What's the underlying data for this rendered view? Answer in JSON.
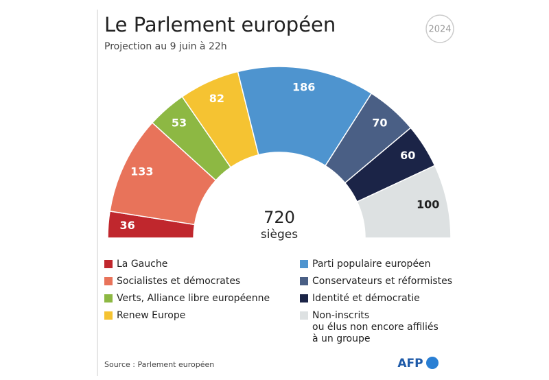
{
  "chart_data": {
    "type": "parliament",
    "title": "Le Parlement européen",
    "subtitle": "Projection au 9 juin à 22h",
    "badge": "2024",
    "categories": [
      "La Gauche",
      "Socialistes et démocrates",
      "Verts, Alliance libre européenne",
      "Renew Europe",
      "Parti populaire européen",
      "Conservateurs et réformistes",
      "Identité et démocratie",
      "Non-inscrits\nou élus non encore affiliés\nà un groupe"
    ],
    "values": [
      36,
      133,
      53,
      82,
      186,
      70,
      60,
      100
    ],
    "colors": [
      "#c0272d",
      "#e8735a",
      "#8db843",
      "#f5c332",
      "#4e94cf",
      "#4a5f85",
      "#1b2447",
      "#dde1e2"
    ],
    "label_colors": [
      "#ffffff",
      "#ffffff",
      "#ffffff",
      "#ffffff",
      "#ffffff",
      "#ffffff",
      "#ffffff",
      "#222222"
    ],
    "total": 720,
    "total_label": "sièges",
    "source": "Source : Parlement européen",
    "logo": "AFP"
  }
}
